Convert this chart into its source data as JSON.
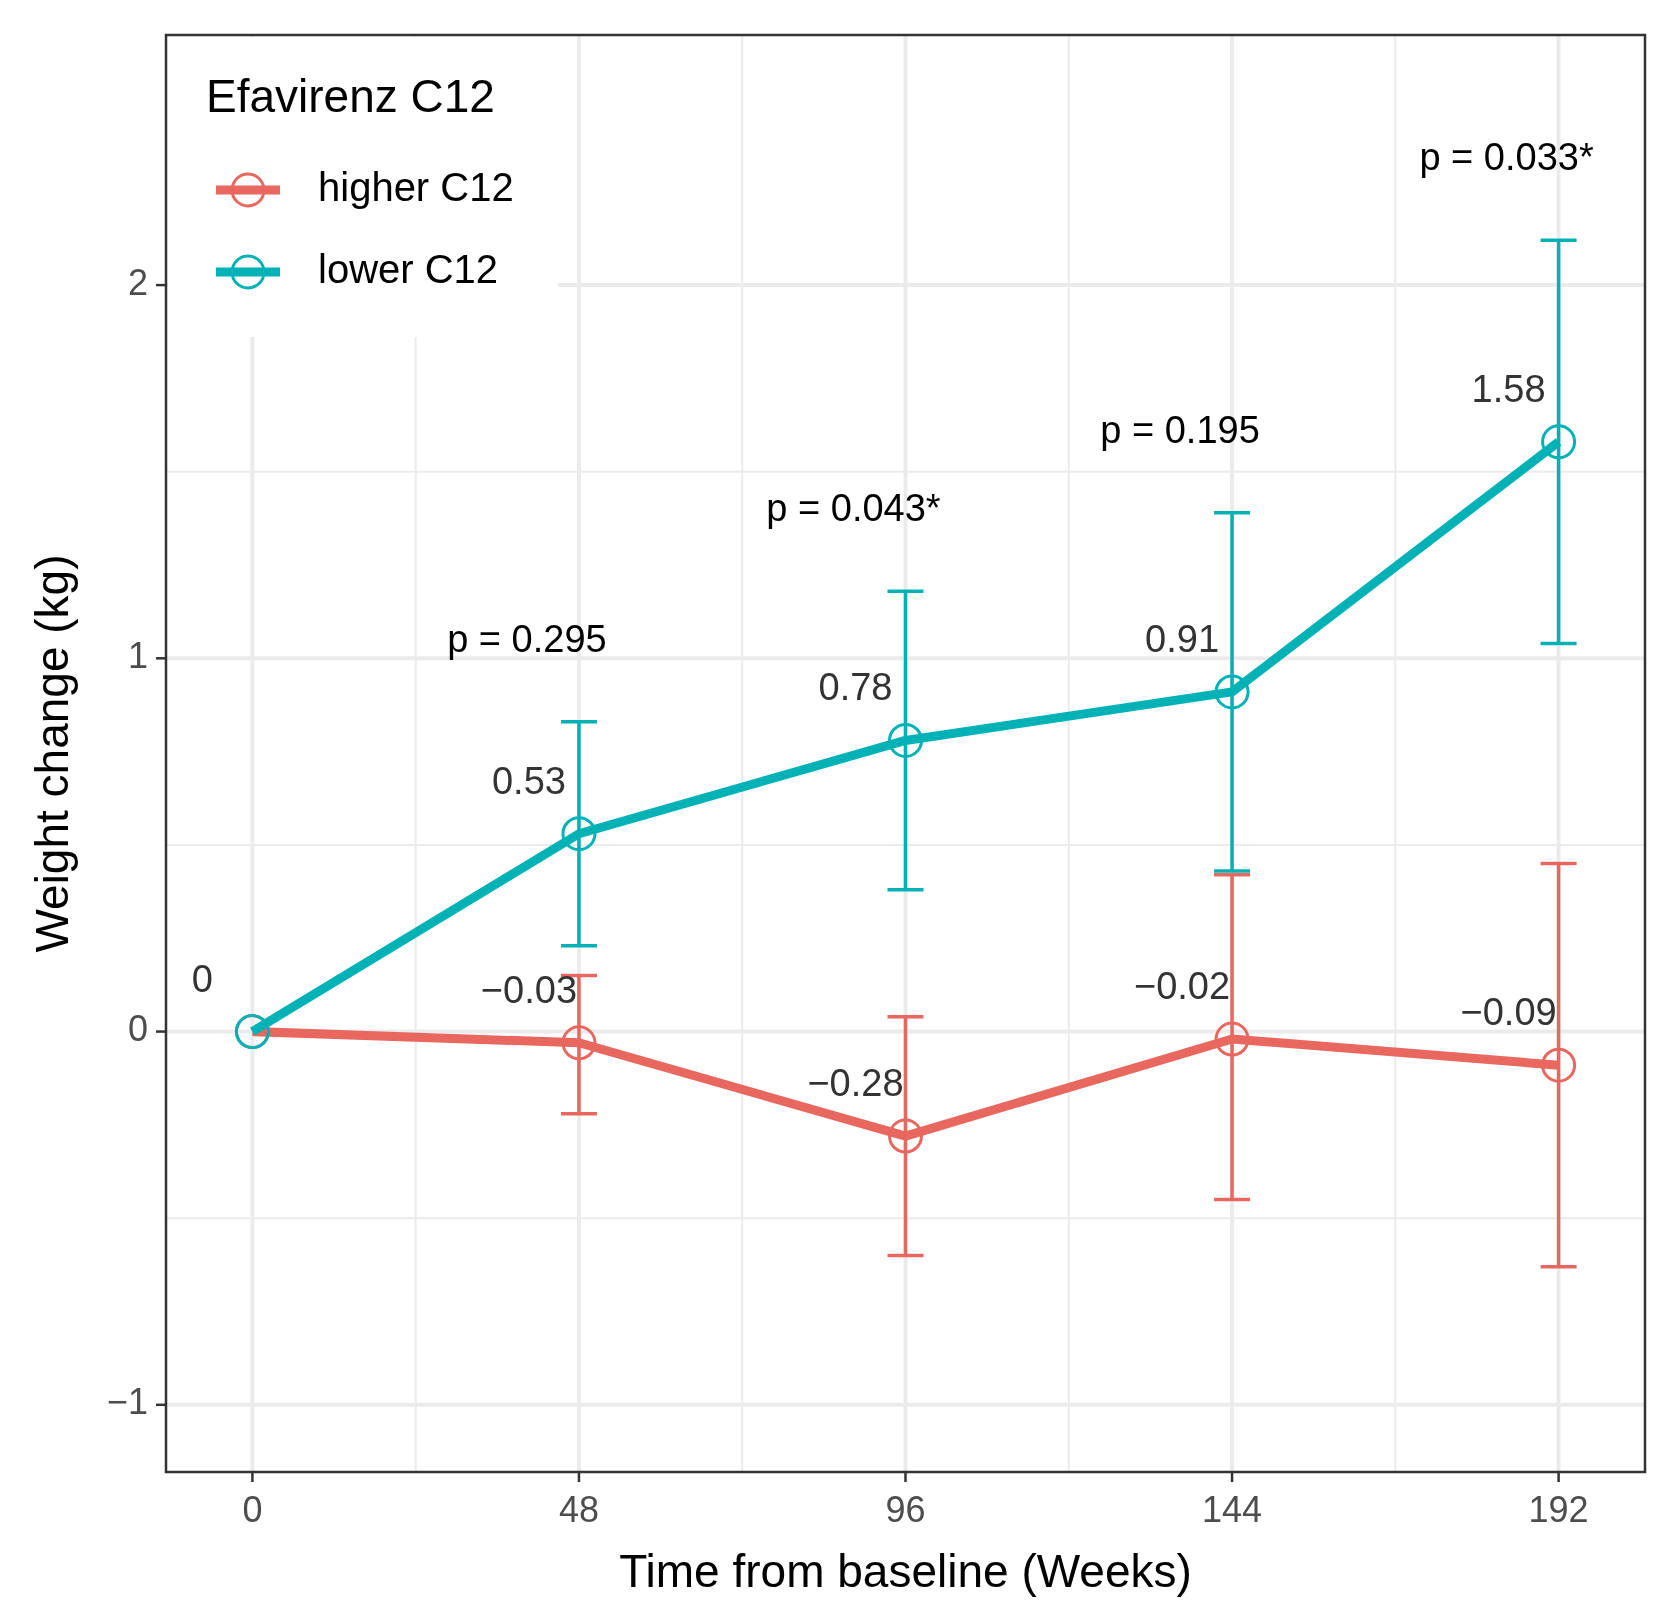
{
  "chart_data": {
    "type": "line",
    "xlabel": "Time from baseline (Weeks)",
    "ylabel": "Weight change (kg)",
    "legend_title": "Efavirenz C12",
    "x": [
      0,
      48,
      96,
      144,
      192
    ],
    "xlim": [
      -12.7,
      204.7
    ],
    "xticks": [
      0,
      48,
      96,
      144,
      192
    ],
    "ylim": [
      -1.18,
      2.67
    ],
    "yticks": [
      {
        "value": -1,
        "label": "−1"
      },
      0,
      1,
      2
    ],
    "grid": true,
    "legend": "top left",
    "marker": "circle",
    "line_style": "solid",
    "series": [
      {
        "name": "higher C12",
        "color": "#e8675f",
        "values": [
          0,
          -0.03,
          -0.28,
          -0.02,
          -0.09
        ],
        "errors": [
          null,
          [
            -0.22,
            0.15
          ],
          [
            -0.6,
            0.04
          ],
          [
            -0.45,
            0.42
          ],
          [
            -0.63,
            0.45
          ]
        ],
        "value_labels": [
          null,
          "−0.03",
          "−0.28",
          "−0.02",
          "−0.09"
        ]
      },
      {
        "name": "lower C12",
        "color": "#00b2b6",
        "values": [
          0,
          0.53,
          0.78,
          0.91,
          1.58
        ],
        "errors": [
          null,
          [
            0.23,
            0.83
          ],
          [
            0.38,
            1.18
          ],
          [
            0.43,
            1.39
          ],
          [
            1.04,
            2.12
          ]
        ],
        "value_labels": [
          "0",
          "0.53",
          "0.78",
          "0.91",
          "1.58"
        ]
      }
    ],
    "annotations": [
      "p = 0.295",
      "p = 0.043*",
      "p = 0.195",
      "p = 0.033*"
    ]
  }
}
